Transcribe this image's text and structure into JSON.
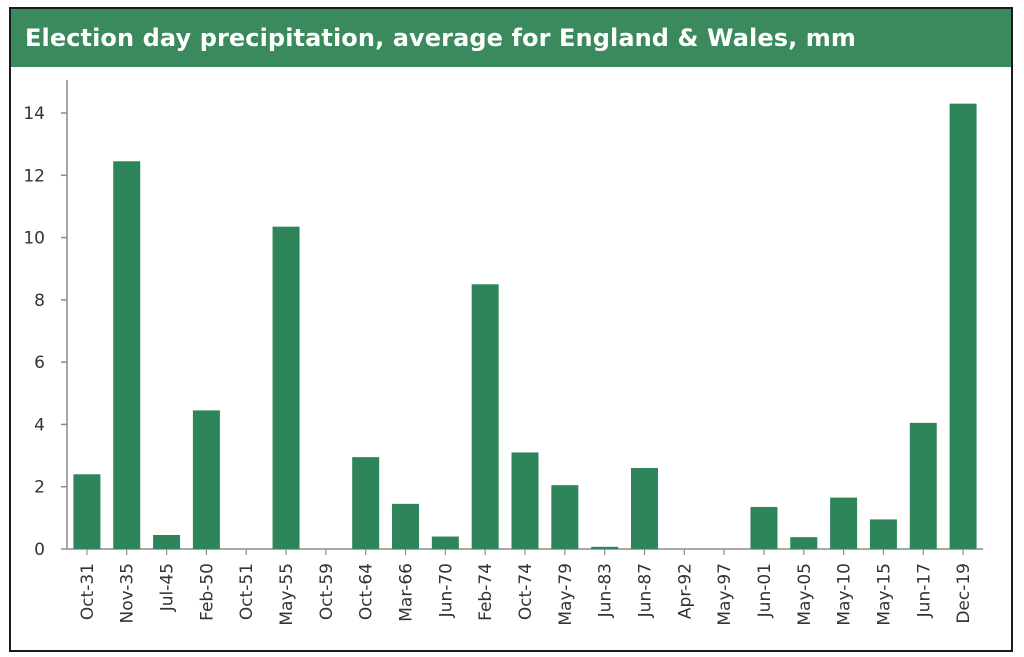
{
  "title": "Election day precipitation, average for England & Wales, mm",
  "colors": {
    "bar": "#2f855a",
    "title_bg": "#3a8a5e",
    "axis": "#8c8c8c",
    "title_text": "#ffffff"
  },
  "chart_data": {
    "type": "bar",
    "title": "Election day precipitation, average for England & Wales, mm",
    "xlabel": "",
    "ylabel": "",
    "ylim": [
      0,
      15
    ],
    "yticks": [
      0,
      2,
      4,
      6,
      8,
      10,
      12,
      14
    ],
    "grid": false,
    "legend": "none",
    "categories": [
      "Oct-31",
      "Nov-35",
      "Jul-45",
      "Feb-50",
      "Oct-51",
      "May-55",
      "Oct-59",
      "Oct-64",
      "Mar-66",
      "Jun-70",
      "Feb-74",
      "Oct-74",
      "May-79",
      "Jun-83",
      "Jun-87",
      "Apr-92",
      "May-97",
      "Jun-01",
      "May-05",
      "May-10",
      "May-15",
      "Jun-17",
      "Dec-19"
    ],
    "values": [
      2.4,
      12.45,
      0.45,
      4.45,
      0,
      10.35,
      0,
      2.95,
      1.45,
      0.4,
      8.5,
      3.1,
      2.05,
      0.07,
      2.6,
      0,
      0,
      1.35,
      0.38,
      1.65,
      0.95,
      4.05,
      14.3
    ]
  }
}
